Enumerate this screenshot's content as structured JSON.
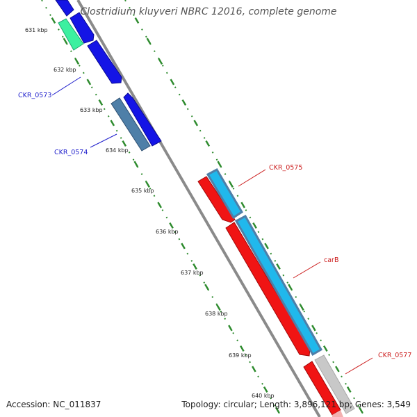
{
  "title": "Clostridium kluyveri NBRC 12016, complete genome",
  "footer": {
    "accession": "Accession: NC_011837",
    "summary": "Topology: circular; Length: 3,896,121 bp; Genes: 3,549"
  },
  "colors": {
    "backbone": "#8a8a8a",
    "tick_green": "#2e8b2e",
    "label_blue": "#1f1fcc",
    "label_red": "#cc1f1f",
    "strand_plus_blue": "#1414e6",
    "steel_blue": "#4e7fa8",
    "mint": "#3cf0a0",
    "red": "#f01414",
    "cyan": "#20b8ec",
    "grey": "#c8c8c8"
  },
  "tick_labels": [
    "631 kbp",
    "632 kbp",
    "633 kbp",
    "634 kbp",
    "635 kbp",
    "636 kbp",
    "637 kbp",
    "638 kbp",
    "639 kbp",
    "640 kbp"
  ],
  "genes": [
    {
      "name": "CKR_0573",
      "color": "label_blue"
    },
    {
      "name": "CKR_0574",
      "color": "label_blue"
    },
    {
      "name": "CKR_0575",
      "color": "label_red"
    },
    {
      "name": "carB",
      "color": "label_red"
    },
    {
      "name": "CKR_0577",
      "color": "label_red"
    }
  ]
}
